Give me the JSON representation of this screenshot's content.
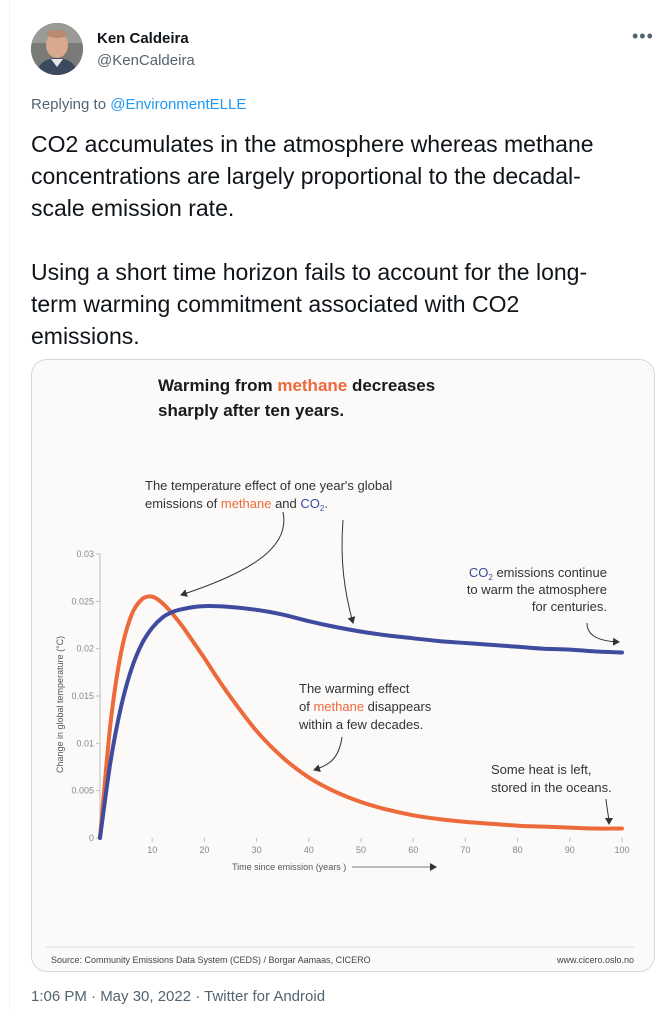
{
  "tweet": {
    "author": {
      "display_name": "Ken Caldeira",
      "handle": "@KenCaldeira"
    },
    "more_icon": "•••",
    "reply": {
      "prefix": "Replying to ",
      "target": "@EnvironmentELLE"
    },
    "text": "CO2 accumulates in the atmosphere whereas methane\nconcentrations are largely proportional to the decadal-\nscale emission rate.\n\nUsing a short time horizon fails to account for the long-\nterm warming commitment associated with CO2\nemissions.",
    "meta": {
      "timestamp": "1:06 PM · May 30, 2022 · Twitter for Android"
    }
  },
  "image": {
    "title": {
      "line1_a": "Warming from ",
      "line1_hl": "methane",
      "line1_b": " decreases",
      "line2": "sharply after ten years."
    },
    "ann_top": {
      "line1": "The temperature effect of one year's global",
      "line2_a": "emissions of ",
      "line2_methane": "methane",
      "line2_and": " and ",
      "line2_co": "CO",
      "line2_sub": "2",
      "line2_end": "."
    },
    "ann_co2": {
      "line1_co": "CO",
      "line1_sub": "2",
      "line1_rest": " emissions continue",
      "line2": "to warm the atmosphere",
      "line3": "for centuries."
    },
    "ann_meth": {
      "line1": "The warming effect",
      "line2_a": "of ",
      "line2_methane": "methane",
      "line2_b": " disappears",
      "line3": "within a few decades."
    },
    "ann_heat": {
      "line1": "Some heat is left,",
      "line2": "stored in the oceans."
    },
    "source": "Source: Community Emissions Data System (CEDS)  / Borgar Aamaas, CICERO",
    "website": "www.cicero.oslo.no"
  },
  "chart_data": {
    "type": "line",
    "xlabel": "Time since emission (years )",
    "ylabel": "Change in global temperature (°C)",
    "xlim": [
      0,
      100
    ],
    "ylim": [
      0,
      0.03
    ],
    "x_ticks": [
      10,
      20,
      30,
      40,
      50,
      60,
      70,
      80,
      90,
      100
    ],
    "y_ticks": [
      "0",
      "0.005",
      "0.01",
      "0.015",
      "0.02",
      "0.025",
      "0.03"
    ],
    "grid": false,
    "x": [
      0,
      2,
      4,
      6,
      8,
      10,
      12,
      14,
      16,
      18,
      20,
      22,
      25,
      30,
      35,
      40,
      45,
      50,
      55,
      60,
      65,
      70,
      75,
      80,
      85,
      90,
      95,
      100
    ],
    "series": [
      {
        "name": "methane",
        "color": "#ec6a3b",
        "values": [
          0,
          0.012,
          0.0195,
          0.0235,
          0.0252,
          0.0255,
          0.0248,
          0.0236,
          0.0222,
          0.0206,
          0.019,
          0.0173,
          0.0149,
          0.0113,
          0.0085,
          0.0064,
          0.0049,
          0.0038,
          0.003,
          0.0024,
          0.002,
          0.0017,
          0.0015,
          0.0013,
          0.0012,
          0.0011,
          0.001,
          0.001
        ]
      },
      {
        "name": "CO2",
        "color": "#3e4b9f",
        "values": [
          0,
          0.008,
          0.0138,
          0.0178,
          0.0205,
          0.0222,
          0.0233,
          0.0239,
          0.0242,
          0.0244,
          0.0245,
          0.0245,
          0.0244,
          0.0241,
          0.0236,
          0.0229,
          0.0223,
          0.0218,
          0.0214,
          0.0211,
          0.0208,
          0.0206,
          0.0204,
          0.0202,
          0.02,
          0.0199,
          0.0197,
          0.0196
        ]
      }
    ]
  }
}
